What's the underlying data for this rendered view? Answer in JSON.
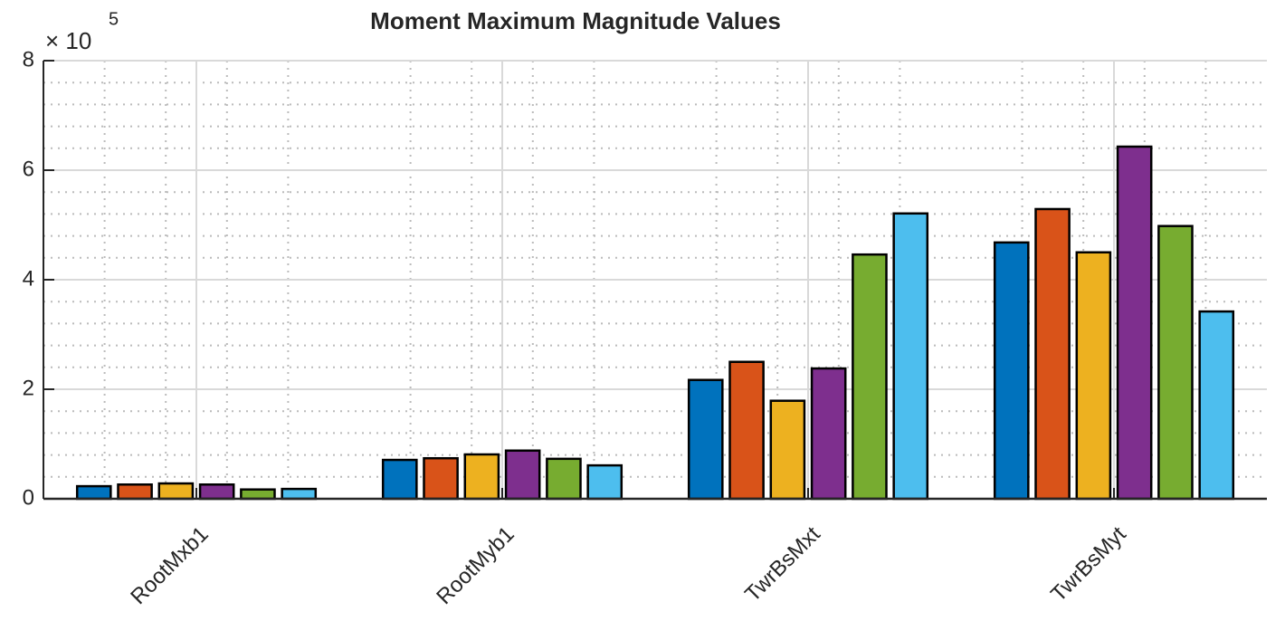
{
  "chart_data": {
    "type": "bar",
    "title": "Moment Maximum Magnitude Values",
    "y_exponent_base": "× 10",
    "y_exponent": "5",
    "categories": [
      "RootMxb1",
      "RootMyb1",
      "TwrBsMxt",
      "TwrBsMyt"
    ],
    "series": [
      {
        "color": "#0072BD",
        "values": [
          0.23,
          0.71,
          2.17,
          4.68
        ]
      },
      {
        "color": "#D95319",
        "values": [
          0.26,
          0.74,
          2.5,
          5.29
        ]
      },
      {
        "color": "#EDB120",
        "values": [
          0.28,
          0.81,
          1.79,
          4.5
        ]
      },
      {
        "color": "#7E2F8E",
        "values": [
          0.26,
          0.88,
          2.38,
          6.43
        ]
      },
      {
        "color": "#77AC30",
        "values": [
          0.17,
          0.73,
          4.46,
          4.98
        ]
      },
      {
        "color": "#4DBEEE",
        "values": [
          0.18,
          0.61,
          5.21,
          3.42
        ]
      }
    ],
    "ylim": [
      0,
      8
    ],
    "yticks": [
      0,
      2,
      4,
      6,
      8
    ],
    "grid": true,
    "minor_grid": true
  }
}
